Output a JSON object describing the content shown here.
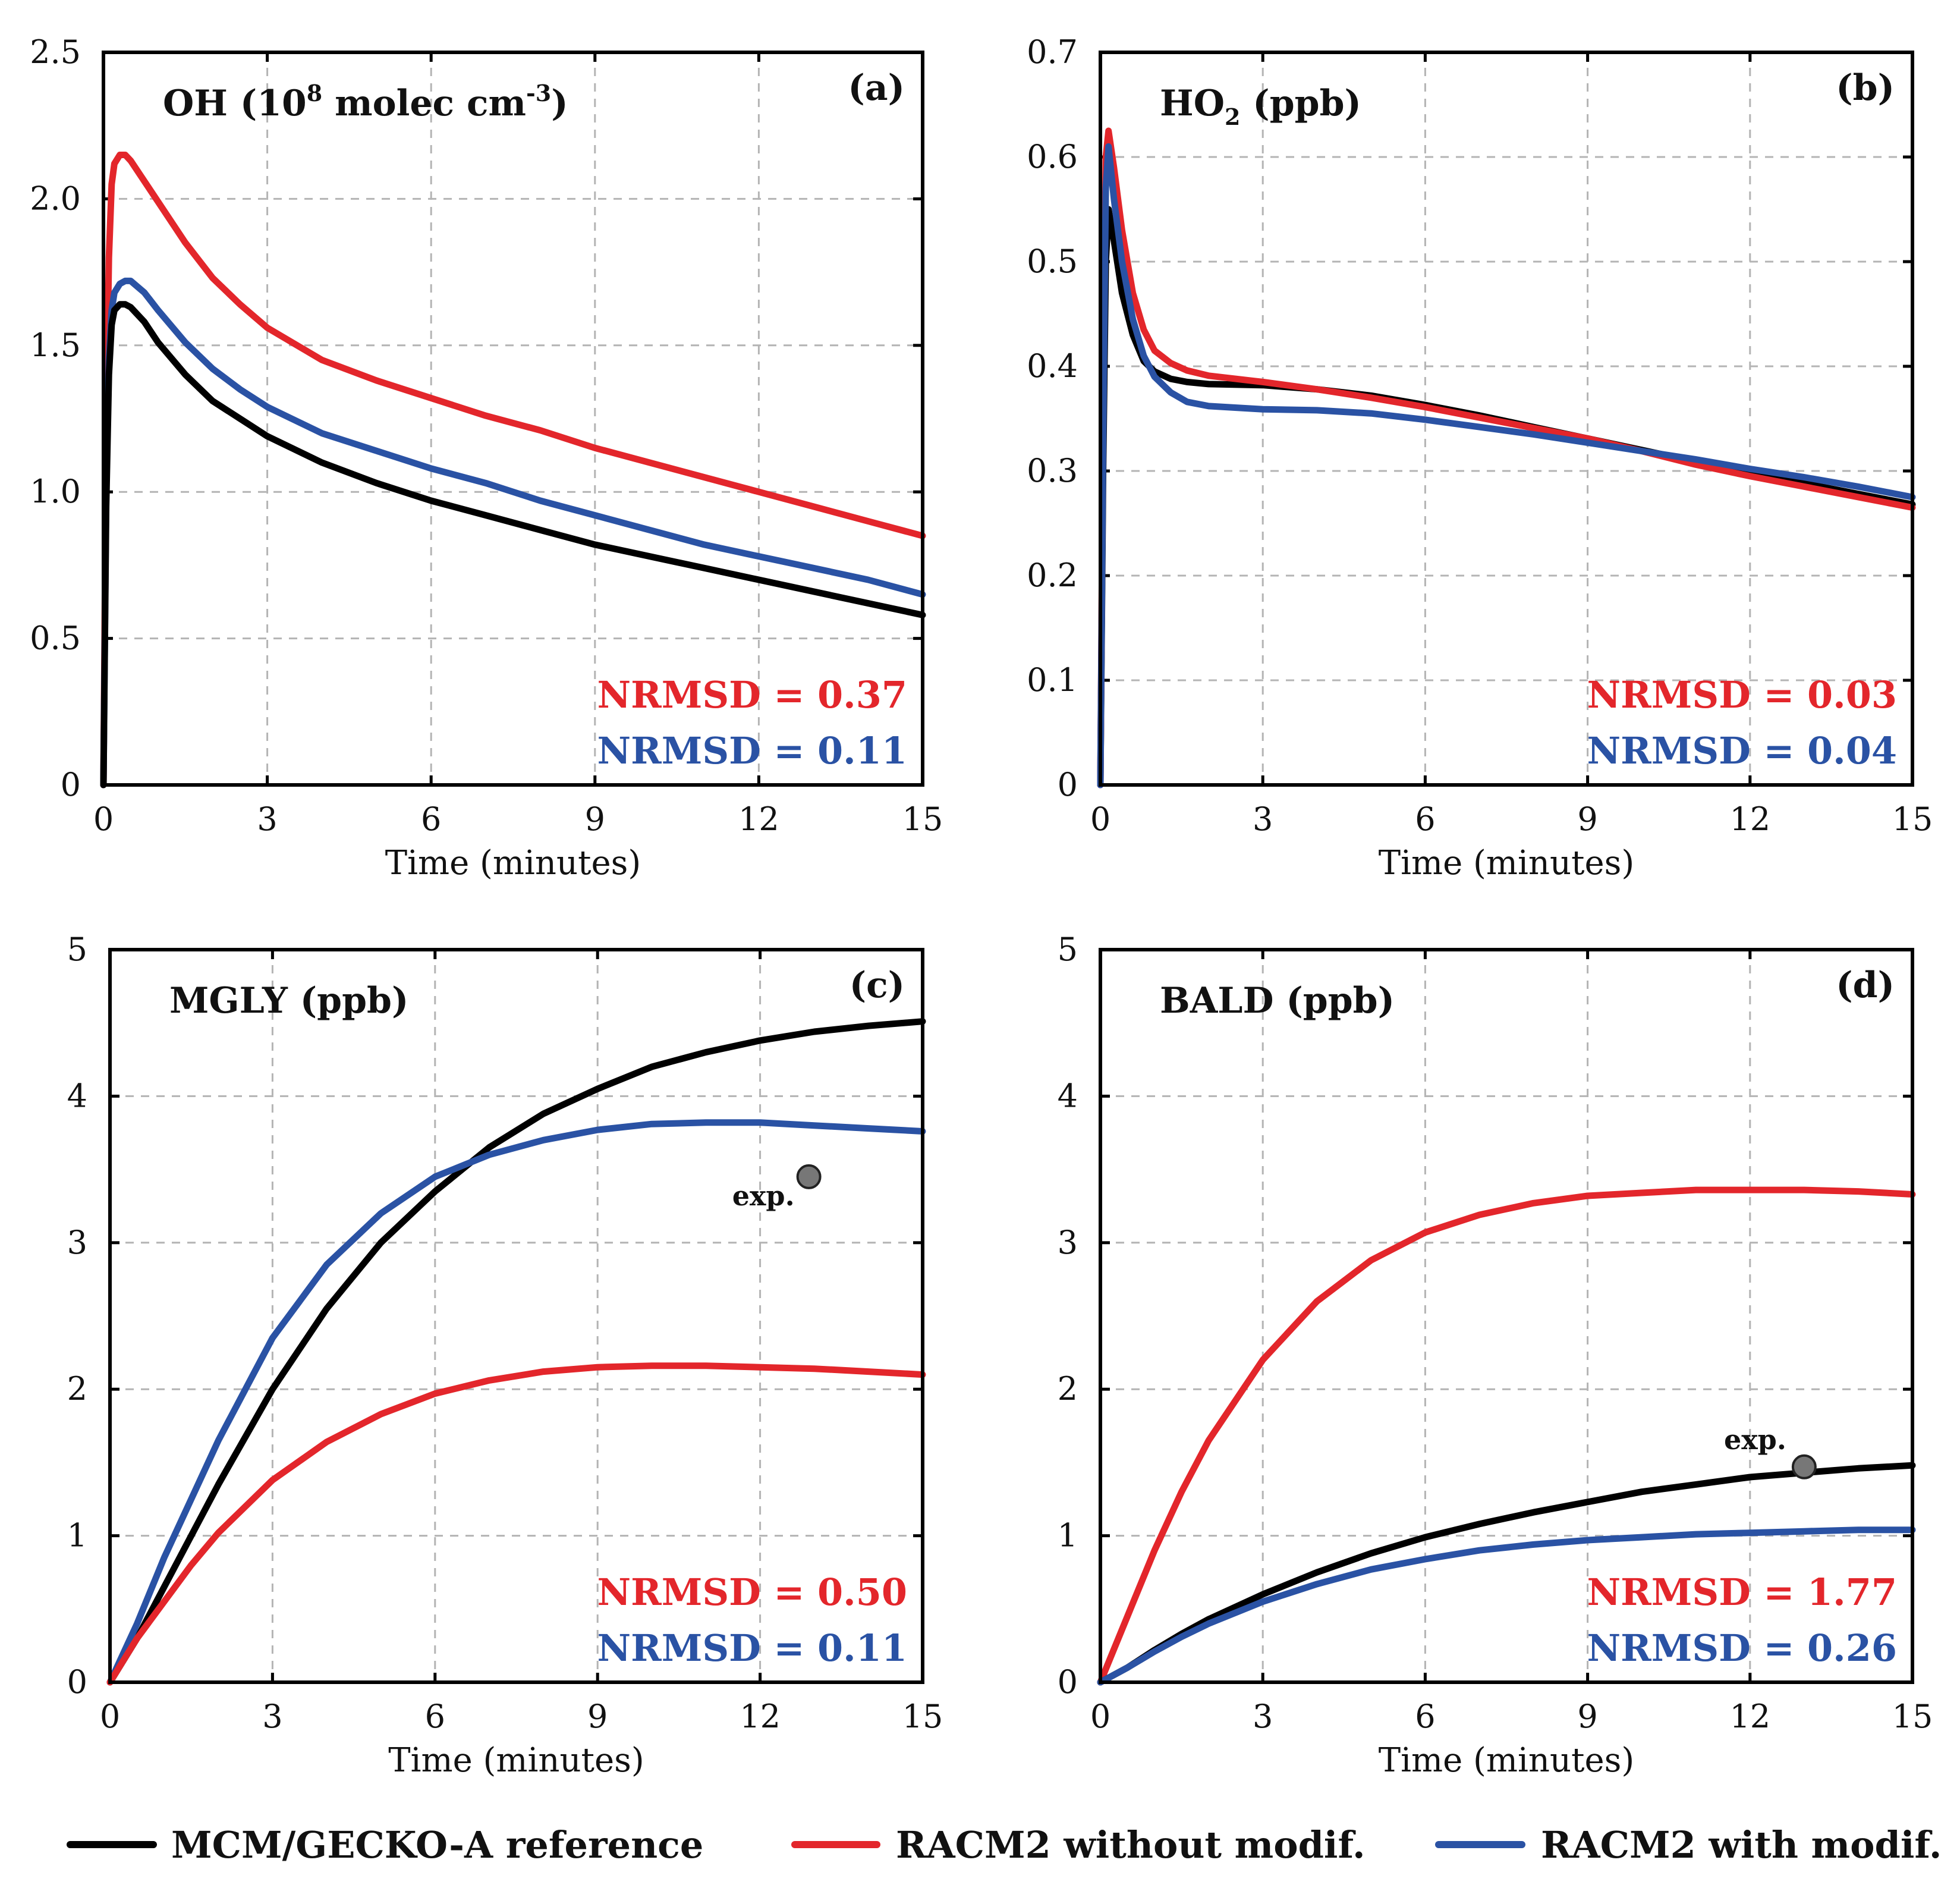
{
  "xlabel": "Time (minutes)",
  "legend": [
    {
      "key": "ref",
      "label": "MCM/GECKO-A reference",
      "color": "#000000"
    },
    {
      "key": "without",
      "label": "RACM2 without modif.",
      "color": "#e3262b"
    },
    {
      "key": "with",
      "label": "RACM2 with modif.",
      "color": "#2a52a4"
    }
  ],
  "chart_data": [
    {
      "type": "line",
      "panel_label": "(a)",
      "species": {
        "main": "OH (10",
        "sup1": "8",
        "mid": " molec cm",
        "sup2": "-3",
        "end": ")"
      },
      "xlabel": "Time (minutes)",
      "xlim": [
        0,
        15
      ],
      "ylim": [
        0,
        2.5
      ],
      "xticks": [
        "0",
        "3",
        "6",
        "9",
        "12",
        "15"
      ],
      "yticks": [
        "0",
        "0.5",
        "1.0",
        "1.5",
        "2.0",
        "2.5"
      ],
      "grid": true,
      "nrmsd": [
        {
          "series": "without",
          "text": "NRMSD = 0.37"
        },
        {
          "series": "with",
          "text": "NRMSD = 0.11"
        }
      ],
      "series": [
        {
          "key": "without",
          "x": [
            0,
            0.05,
            0.1,
            0.15,
            0.2,
            0.3,
            0.4,
            0.5,
            0.75,
            1,
            1.5,
            2,
            2.5,
            3,
            4,
            5,
            6,
            7,
            8,
            9,
            10,
            11,
            12,
            13,
            14,
            15
          ],
          "values": [
            0,
            1.2,
            1.8,
            2.05,
            2.12,
            2.15,
            2.15,
            2.13,
            2.06,
            1.99,
            1.85,
            1.73,
            1.64,
            1.56,
            1.45,
            1.38,
            1.32,
            1.26,
            1.21,
            1.15,
            1.1,
            1.05,
            1.0,
            0.95,
            0.9,
            0.85
          ]
        },
        {
          "key": "with",
          "x": [
            0,
            0.05,
            0.1,
            0.15,
            0.2,
            0.3,
            0.4,
            0.5,
            0.75,
            1,
            1.5,
            2,
            2.5,
            3,
            4,
            5,
            6,
            7,
            8,
            9,
            10,
            11,
            12,
            13,
            14,
            15
          ],
          "values": [
            0,
            1.0,
            1.45,
            1.62,
            1.68,
            1.71,
            1.72,
            1.72,
            1.68,
            1.62,
            1.51,
            1.42,
            1.35,
            1.29,
            1.2,
            1.14,
            1.08,
            1.03,
            0.97,
            0.92,
            0.87,
            0.82,
            0.78,
            0.74,
            0.7,
            0.65
          ]
        },
        {
          "key": "ref",
          "x": [
            0,
            0.05,
            0.1,
            0.15,
            0.2,
            0.3,
            0.4,
            0.5,
            0.75,
            1,
            1.5,
            2,
            2.5,
            3,
            4,
            5,
            6,
            7,
            8,
            9,
            10,
            11,
            12,
            13,
            14,
            15
          ],
          "values": [
            0,
            0.95,
            1.4,
            1.57,
            1.62,
            1.64,
            1.64,
            1.63,
            1.58,
            1.51,
            1.4,
            1.31,
            1.25,
            1.19,
            1.1,
            1.03,
            0.97,
            0.92,
            0.87,
            0.82,
            0.78,
            0.74,
            0.7,
            0.66,
            0.62,
            0.58
          ]
        }
      ]
    },
    {
      "type": "line",
      "panel_label": "(b)",
      "species": {
        "main": "HO",
        "sub": "2",
        "end": " (ppb)"
      },
      "xlabel": "Time (minutes)",
      "xlim": [
        0,
        15
      ],
      "ylim": [
        0,
        0.7
      ],
      "xticks": [
        "0",
        "3",
        "6",
        "9",
        "12",
        "15"
      ],
      "yticks": [
        "0",
        "0.1",
        "0.2",
        "0.3",
        "0.4",
        "0.5",
        "0.6",
        "0.7"
      ],
      "grid": true,
      "nrmsd": [
        {
          "series": "without",
          "text": "NRMSD = 0.03"
        },
        {
          "series": "with",
          "text": "NRMSD = 0.04"
        }
      ],
      "series": [
        {
          "key": "ref",
          "x": [
            0,
            0.05,
            0.1,
            0.15,
            0.25,
            0.4,
            0.6,
            0.8,
            1,
            1.3,
            1.6,
            2,
            3,
            4,
            5,
            6,
            7,
            8,
            9,
            10,
            11,
            12,
            13,
            14,
            15
          ],
          "values": [
            0,
            0.3,
            0.5,
            0.55,
            0.52,
            0.47,
            0.43,
            0.405,
            0.395,
            0.388,
            0.385,
            0.383,
            0.382,
            0.378,
            0.372,
            0.363,
            0.353,
            0.342,
            0.331,
            0.32,
            0.309,
            0.298,
            0.288,
            0.278,
            0.268
          ]
        },
        {
          "key": "without",
          "x": [
            0,
            0.05,
            0.1,
            0.15,
            0.25,
            0.4,
            0.6,
            0.8,
            1,
            1.3,
            1.6,
            2,
            3,
            4,
            5,
            6,
            7,
            8,
            9,
            10,
            11,
            12,
            13,
            14,
            15
          ],
          "values": [
            0,
            0.35,
            0.6,
            0.625,
            0.59,
            0.53,
            0.47,
            0.435,
            0.415,
            0.403,
            0.396,
            0.391,
            0.385,
            0.378,
            0.37,
            0.361,
            0.351,
            0.341,
            0.331,
            0.319,
            0.306,
            0.295,
            0.285,
            0.275,
            0.265
          ]
        },
        {
          "key": "with",
          "x": [
            0,
            0.05,
            0.1,
            0.15,
            0.25,
            0.4,
            0.6,
            0.8,
            1,
            1.3,
            1.6,
            2,
            3,
            4,
            5,
            6,
            7,
            8,
            9,
            10,
            11,
            12,
            13,
            14,
            15
          ],
          "values": [
            0,
            0.33,
            0.57,
            0.61,
            0.56,
            0.5,
            0.445,
            0.41,
            0.39,
            0.375,
            0.366,
            0.362,
            0.359,
            0.358,
            0.355,
            0.349,
            0.342,
            0.335,
            0.327,
            0.319,
            0.311,
            0.302,
            0.294,
            0.285,
            0.275
          ]
        }
      ]
    },
    {
      "type": "line",
      "panel_label": "(c)",
      "species": {
        "main": "MGLY (ppb)"
      },
      "xlabel": "Time (minutes)",
      "xlim": [
        0,
        15
      ],
      "ylim": [
        0,
        5
      ],
      "xticks": [
        "0",
        "3",
        "6",
        "9",
        "12",
        "15"
      ],
      "yticks": [
        "0",
        "1",
        "2",
        "3",
        "4",
        "5"
      ],
      "grid": true,
      "nrmsd": [
        {
          "series": "without",
          "text": "NRMSD = 0.50"
        },
        {
          "series": "with",
          "text": "NRMSD = 0.11"
        }
      ],
      "experiment": {
        "label": "exp.",
        "x": 12.9,
        "y": 3.45
      },
      "series": [
        {
          "key": "ref",
          "x": [
            0,
            0.5,
            1,
            1.5,
            2,
            3,
            4,
            5,
            6,
            7,
            8,
            9,
            10,
            11,
            12,
            13,
            14,
            15
          ],
          "values": [
            0,
            0.3,
            0.65,
            1.0,
            1.35,
            2.0,
            2.55,
            3.0,
            3.35,
            3.65,
            3.88,
            4.05,
            4.2,
            4.3,
            4.38,
            4.44,
            4.48,
            4.51
          ]
        },
        {
          "key": "with",
          "x": [
            0,
            0.5,
            1,
            1.5,
            2,
            3,
            4,
            5,
            6,
            7,
            8,
            9,
            10,
            11,
            12,
            13,
            14,
            15
          ],
          "values": [
            0,
            0.4,
            0.85,
            1.25,
            1.65,
            2.35,
            2.85,
            3.2,
            3.45,
            3.6,
            3.7,
            3.77,
            3.81,
            3.82,
            3.82,
            3.8,
            3.78,
            3.76
          ]
        },
        {
          "key": "without",
          "x": [
            0,
            0.5,
            1,
            1.5,
            2,
            3,
            4,
            5,
            6,
            7,
            8,
            9,
            10,
            11,
            12,
            13,
            14,
            15
          ],
          "values": [
            0,
            0.3,
            0.55,
            0.8,
            1.02,
            1.38,
            1.64,
            1.83,
            1.97,
            2.06,
            2.12,
            2.15,
            2.16,
            2.16,
            2.15,
            2.14,
            2.12,
            2.1
          ]
        }
      ]
    },
    {
      "type": "line",
      "panel_label": "(d)",
      "species": {
        "main": "BALD (ppb)"
      },
      "xlabel": "Time (minutes)",
      "xlim": [
        0,
        15
      ],
      "ylim": [
        0,
        5
      ],
      "xticks": [
        "0",
        "3",
        "6",
        "9",
        "12",
        "15"
      ],
      "yticks": [
        "0",
        "1",
        "2",
        "3",
        "4",
        "5"
      ],
      "grid": true,
      "nrmsd": [
        {
          "series": "without",
          "text": "NRMSD = 1.77"
        },
        {
          "series": "with",
          "text": "NRMSD = 0.26"
        }
      ],
      "experiment": {
        "label": "exp.",
        "x": 13.0,
        "y": 1.47
      },
      "series": [
        {
          "key": "without",
          "x": [
            0,
            0.5,
            1,
            1.5,
            2,
            3,
            4,
            5,
            6,
            7,
            8,
            9,
            10,
            11,
            12,
            13,
            14,
            15
          ],
          "values": [
            0,
            0.45,
            0.9,
            1.3,
            1.65,
            2.2,
            2.6,
            2.88,
            3.07,
            3.19,
            3.27,
            3.32,
            3.34,
            3.36,
            3.36,
            3.36,
            3.35,
            3.33
          ]
        },
        {
          "key": "ref",
          "x": [
            0,
            0.5,
            1,
            1.5,
            2,
            3,
            4,
            5,
            6,
            7,
            8,
            9,
            10,
            11,
            12,
            13,
            14,
            15
          ],
          "values": [
            0,
            0.1,
            0.22,
            0.33,
            0.43,
            0.6,
            0.75,
            0.88,
            0.99,
            1.08,
            1.16,
            1.23,
            1.3,
            1.35,
            1.4,
            1.43,
            1.46,
            1.48
          ]
        },
        {
          "key": "with",
          "x": [
            0,
            0.5,
            1,
            1.5,
            2,
            3,
            4,
            5,
            6,
            7,
            8,
            9,
            10,
            11,
            12,
            13,
            14,
            15
          ],
          "values": [
            0,
            0.1,
            0.21,
            0.31,
            0.4,
            0.55,
            0.67,
            0.77,
            0.84,
            0.9,
            0.94,
            0.97,
            0.99,
            1.01,
            1.02,
            1.03,
            1.04,
            1.04
          ]
        }
      ]
    }
  ]
}
